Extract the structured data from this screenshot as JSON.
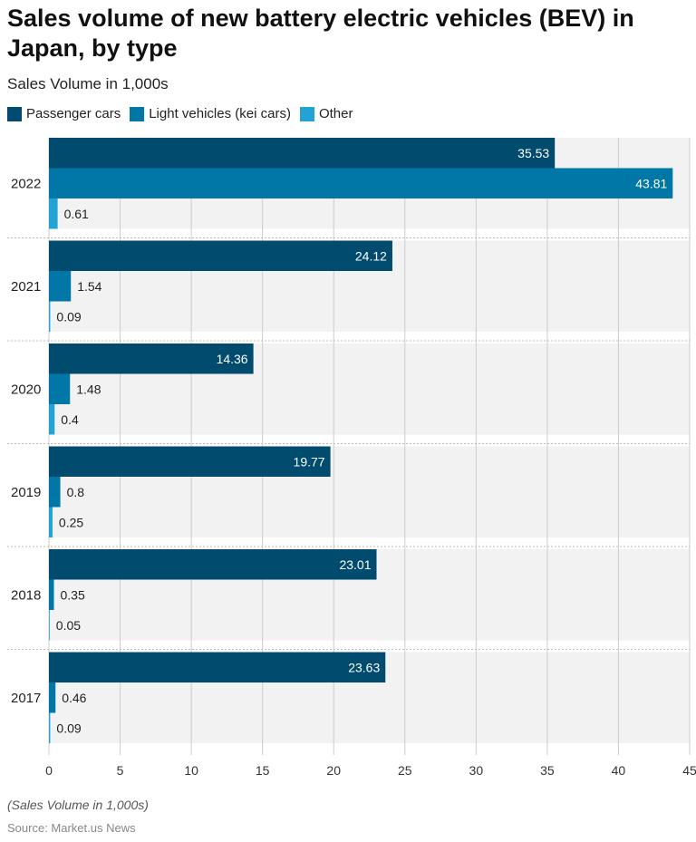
{
  "title": "Sales volume of new battery electric vehicles (BEV) in Japan, by type",
  "subtitle": "Sales Volume in 1,000s",
  "footnote": "(Sales Volume in 1,000s)",
  "source": "Source: Market.us News",
  "colors": {
    "passenger": "#004b6e",
    "light": "#0077a6",
    "other": "#22a3d3",
    "band": "#f2f2f2",
    "grid": "#cccccc"
  },
  "chart_data": {
    "type": "bar",
    "orientation": "horizontal",
    "categories": [
      "2022",
      "2021",
      "2020",
      "2019",
      "2018",
      "2017"
    ],
    "series": [
      {
        "name": "Passenger cars",
        "values": [
          35.53,
          24.12,
          14.36,
          19.77,
          23.01,
          23.63
        ]
      },
      {
        "name": "Light vehicles (kei cars)",
        "values": [
          43.81,
          1.54,
          1.48,
          0.8,
          0.35,
          0.46
        ]
      },
      {
        "name": "Other",
        "values": [
          0.61,
          0.09,
          0.4,
          0.25,
          0.05,
          0.09
        ]
      }
    ],
    "value_labels": [
      [
        "35.53",
        "24.12",
        "14.36",
        "19.77",
        "23.01",
        "23.63"
      ],
      [
        "43.81",
        "1.54",
        "1.48",
        "0.8",
        "0.35",
        "0.46"
      ],
      [
        "0.61",
        "0.09",
        "0.4",
        "0.25",
        "0.05",
        "0.09"
      ]
    ],
    "xlim": [
      0,
      45
    ],
    "x_ticks": [
      0,
      5,
      10,
      15,
      20,
      25,
      30,
      35,
      40,
      45
    ],
    "x_tick_labels": [
      "0",
      "5",
      "10",
      "15",
      "20",
      "25",
      "30",
      "35",
      "40",
      "45"
    ],
    "xlabel": "",
    "ylabel": "",
    "grid": true,
    "legend_position": "top-left"
  }
}
